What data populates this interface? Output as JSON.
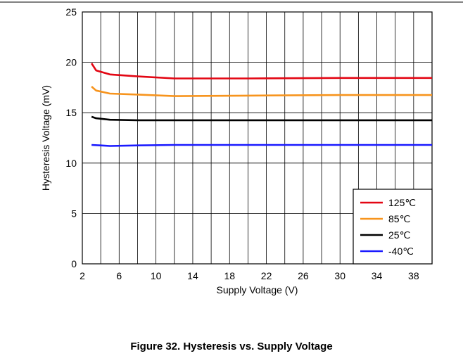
{
  "figure_caption": "Figure 32. Hysteresis vs. Supply Voltage",
  "chart_data": {
    "type": "line",
    "title": "",
    "xlabel": "Supply Voltage (V)",
    "ylabel": "Hysteresis Voltage (mV)",
    "xlim": [
      2,
      40
    ],
    "ylim": [
      0,
      25
    ],
    "xticks": [
      2,
      6,
      10,
      14,
      18,
      22,
      26,
      30,
      34,
      38
    ],
    "yticks": [
      0,
      5,
      10,
      15,
      20,
      25
    ],
    "grid": true,
    "legend_position": "bottom-right",
    "series": [
      {
        "name": "125℃",
        "color": "#e30613",
        "x": [
          3.0,
          3.5,
          5,
          8,
          12,
          20,
          30,
          40
        ],
        "y": [
          19.9,
          19.2,
          18.8,
          18.6,
          18.4,
          18.4,
          18.45,
          18.45
        ]
      },
      {
        "name": "85℃",
        "color": "#f7941d",
        "x": [
          3.0,
          3.5,
          5,
          8,
          12,
          20,
          30,
          40
        ],
        "y": [
          17.6,
          17.2,
          16.9,
          16.8,
          16.65,
          16.7,
          16.75,
          16.75
        ]
      },
      {
        "name": "25℃",
        "color": "#000000",
        "x": [
          3.0,
          3.5,
          5,
          8,
          12,
          20,
          30,
          40
        ],
        "y": [
          14.6,
          14.45,
          14.3,
          14.25,
          14.25,
          14.25,
          14.25,
          14.25
        ]
      },
      {
        "name": "-40℃",
        "color": "#1a1aff",
        "x": [
          3.0,
          4,
          5,
          8,
          12,
          20,
          30,
          40
        ],
        "y": [
          11.8,
          11.75,
          11.7,
          11.75,
          11.8,
          11.8,
          11.8,
          11.8
        ]
      }
    ]
  }
}
